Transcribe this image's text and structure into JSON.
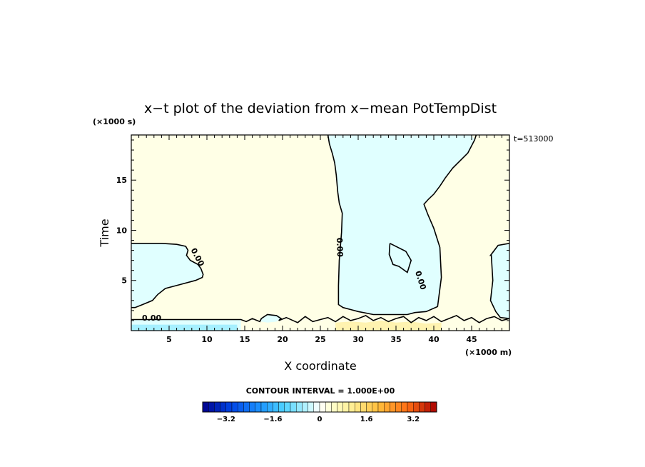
{
  "chart_data": {
    "type": "contour",
    "title": "x−t plot of the deviation from x−mean PotTempDist",
    "xlabel": "X coordinate",
    "ylabel": "Time",
    "x_unit": "(×1000 m)",
    "y_unit": "(×1000 s)",
    "xlim": [
      0,
      50
    ],
    "ylim": [
      0,
      19.5
    ],
    "x_ticks": [
      5,
      10,
      15,
      20,
      25,
      30,
      35,
      40,
      45
    ],
    "x_tick_labels": [
      "5",
      "10",
      "15",
      "20",
      "25",
      "30",
      "35",
      "40",
      "45"
    ],
    "y_ticks": [
      5,
      10,
      15
    ],
    "y_tick_labels": [
      "5",
      "10",
      "15"
    ],
    "time_label": "t=513000",
    "contour_labels": [
      "0.00",
      "0.00",
      "0.00",
      "0.00"
    ],
    "contour_interval_text": "CONTOUR INTERVAL = 1.000E+00",
    "colorbar": {
      "min": -4.0,
      "max": 4.0,
      "step": 0.2,
      "tick_values": [
        -3.2,
        -1.6,
        0,
        1.6,
        3.2
      ],
      "tick_labels": [
        "−3.2",
        "−1.6",
        "0",
        "1.6",
        "3.2"
      ]
    },
    "colors": {
      "negative_fill": "#e0ffff",
      "positive_fill": "#ffffe6",
      "strong_negative_fill": "#a6f0ff",
      "strong_positive_fill": "#fff3b0",
      "contour_line": "#000000"
    },
    "regions": {
      "negative_columns": [
        {
          "x": [
            0,
            0.3,
            2,
            4,
            6,
            7.2,
            7.5,
            7.3,
            7.8,
            8.8,
            9.2,
            9.5,
            9.4,
            8.5,
            6.5,
            4.5,
            3.5,
            2.8,
            1.5,
            0.5,
            0
          ],
          "t": [
            8.7,
            8.7,
            8.7,
            8.7,
            8.6,
            8.4,
            8.0,
            7.5,
            7.0,
            6.6,
            6.2,
            5.6,
            5.3,
            5.0,
            4.6,
            4.2,
            3.6,
            3.0,
            2.6,
            2.3,
            2.3
          ]
        },
        {
          "x": [
            26,
            28,
            30,
            33,
            34.5,
            36,
            37.5,
            38,
            39,
            40.5,
            42,
            43.8,
            45,
            45.4,
            44.5,
            42.5,
            41.5,
            40.8,
            40,
            39.3,
            38.7,
            39.2,
            40,
            40.8,
            41,
            40.5,
            39,
            37.5,
            36.5,
            35.5,
            34,
            32,
            30,
            29,
            28,
            27.4,
            27.4,
            27.5,
            27.8,
            27.9,
            27.5,
            27.3,
            27.1,
            26.9,
            26.6,
            26.2,
            26
          ],
          "t": [
            19.5,
            19.5,
            19.5,
            19.5,
            19.5,
            19.5,
            19.5,
            19.5,
            19.5,
            19.5,
            19.5,
            19.5,
            19.5,
            19.0,
            17.7,
            16.2,
            15.2,
            14.4,
            13.6,
            13.1,
            12.6,
            11.6,
            10.2,
            8.3,
            5.3,
            2.4,
            1.9,
            1.8,
            1.6,
            1.6,
            1.6,
            1.6,
            1.9,
            2.1,
            2.3,
            2.6,
            4.5,
            7.0,
            9.8,
            11.7,
            12.7,
            13.8,
            15.5,
            16.7,
            17.6,
            18.6,
            19.5
          ]
        },
        {
          "x": [
            47.5,
            48.5,
            50,
            50,
            48.8,
            48.2,
            47.5,
            47.8,
            47.6
          ],
          "t": [
            7.5,
            8.5,
            8.7,
            1.2,
            1.3,
            1.9,
            3.0,
            5.0,
            7.5
          ]
        },
        {
          "x": [
            0,
            3,
            6,
            9,
            12,
            14.5,
            14.5,
            12,
            9,
            6,
            3,
            0
          ],
          "t": [
            1.1,
            1.1,
            1.1,
            1.1,
            1.1,
            1.1,
            0,
            0,
            0,
            0,
            0,
            0
          ]
        },
        {
          "x": [
            17.5,
            18.5,
            19.5,
            19.8,
            19.2,
            18.0,
            17.2,
            17.0
          ],
          "t": [
            1.4,
            1.6,
            1.5,
            1.2,
            0.9,
            0.8,
            0.9,
            1.2
          ]
        },
        {
          "x": [
            34.2,
            36.3,
            37.0,
            36.5,
            35.4,
            34.6,
            34.1,
            34.2
          ],
          "t": [
            8.7,
            7.9,
            7.0,
            5.8,
            6.4,
            6.6,
            7.6,
            8.7
          ]
        }
      ],
      "positive_bands": [
        {
          "x": [
            27.0,
            29.0,
            31.0,
            33.0,
            35.0,
            37.0,
            39.0,
            41.0,
            41.0,
            39.0,
            37.0,
            35.0,
            33.0,
            31.0,
            29.0,
            27.0
          ],
          "t": [
            0.8,
            0.9,
            0.8,
            1.0,
            0.8,
            0.9,
            0.7,
            0.8,
            0,
            0,
            0,
            0,
            0,
            0,
            0,
            0
          ]
        }
      ]
    },
    "contours": [
      {
        "value": 0,
        "x": [
          0,
          0.3,
          2,
          4,
          6,
          7.2,
          7.5,
          7.3,
          7.8,
          8.8,
          9.2,
          9.5,
          9.4,
          8.5,
          6.5,
          4.5,
          3.5,
          2.8,
          1.5,
          0.5,
          0
        ],
        "t": [
          8.7,
          8.7,
          8.7,
          8.7,
          8.6,
          8.4,
          8.0,
          7.5,
          7.0,
          6.6,
          6.2,
          5.6,
          5.3,
          5.0,
          4.6,
          4.2,
          3.6,
          3.0,
          2.6,
          2.3,
          2.3
        ]
      },
      {
        "value": 0,
        "x": [
          26.0,
          26.2,
          26.6,
          26.9,
          27.1,
          27.3,
          27.5,
          27.9,
          27.8,
          27.5,
          27.4,
          27.4,
          28.0,
          29.0,
          30.0,
          32.0,
          34.0,
          35.5,
          36.5,
          37.5,
          39.0,
          40.5,
          41.0,
          40.8,
          40.0,
          39.2,
          38.7,
          39.3,
          40.0,
          40.8,
          41.5,
          42.5,
          44.5,
          45.4,
          45.6
        ],
        "t": [
          19.5,
          18.6,
          17.6,
          16.7,
          15.5,
          13.8,
          12.7,
          11.7,
          9.8,
          7.0,
          4.5,
          2.6,
          2.3,
          2.1,
          1.9,
          1.6,
          1.6,
          1.6,
          1.6,
          1.8,
          1.9,
          2.4,
          5.3,
          8.3,
          10.2,
          11.6,
          12.6,
          13.1,
          13.6,
          14.4,
          15.2,
          16.2,
          17.7,
          19.0,
          19.5
        ]
      },
      {
        "value": 0,
        "x": [
          34.2,
          34.1,
          34.6,
          35.4,
          36.5,
          37.0,
          36.3,
          34.2
        ],
        "t": [
          8.7,
          7.6,
          6.6,
          6.4,
          5.8,
          7.0,
          7.9,
          8.7
        ]
      },
      {
        "value": 0,
        "x": [
          50,
          48.5,
          47.5,
          47.6,
          47.8,
          47.5,
          48.2,
          48.8,
          50
        ],
        "t": [
          8.7,
          8.5,
          7.5,
          7.5,
          5.0,
          3.0,
          1.9,
          1.3,
          1.2
        ]
      },
      {
        "value": 0,
        "x": [
          0,
          2,
          4,
          6,
          8,
          10,
          12,
          14.5,
          15.2,
          16,
          17,
          17.2,
          18.0,
          19.2,
          19.8,
          19.5,
          20.5,
          22,
          23,
          24,
          25,
          26,
          27,
          28,
          29,
          30,
          31,
          32,
          33,
          34,
          35,
          36,
          37,
          38,
          39,
          40,
          41,
          42,
          43,
          44,
          45,
          46,
          47,
          48,
          49,
          50
        ],
        "t": [
          1.1,
          1.1,
          1.1,
          1.1,
          1.1,
          1.1,
          1.1,
          1.1,
          0.9,
          1.2,
          0.9,
          1.2,
          1.6,
          1.5,
          1.2,
          1.0,
          1.3,
          0.8,
          1.4,
          0.9,
          1.1,
          1.3,
          0.9,
          1.4,
          1.0,
          1.2,
          1.5,
          1.0,
          1.3,
          0.9,
          1.2,
          1.4,
          0.8,
          1.3,
          1.0,
          1.4,
          0.9,
          1.2,
          1.5,
          1.0,
          1.3,
          0.8,
          1.2,
          1.4,
          1.0,
          1.2
        ]
      }
    ]
  }
}
